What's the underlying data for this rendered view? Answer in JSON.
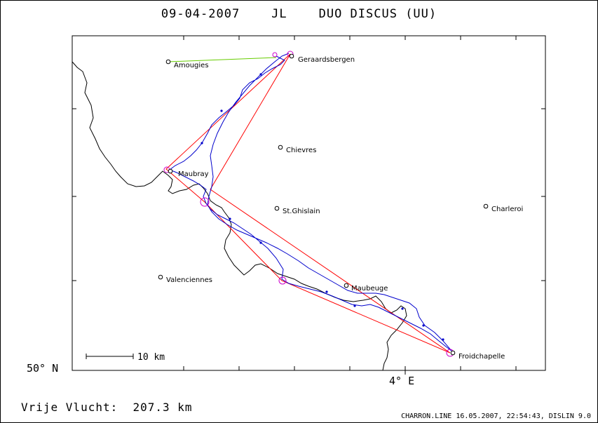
{
  "header": {
    "date": "09-04-2007",
    "pilot": "JL",
    "glider": "DUO DISCUS (UU)"
  },
  "map": {
    "lat_label": "50° N",
    "lon_label": "4° E",
    "scale_bar_label": "10 km",
    "places": [
      {
        "name": "Amougies"
      },
      {
        "name": "Geraardsbergen"
      },
      {
        "name": "Chievres"
      },
      {
        "name": "Maubray"
      },
      {
        "name": "St.Ghislain"
      },
      {
        "name": "Charleroi"
      },
      {
        "name": "Valenciennes"
      },
      {
        "name": "Maubeuge"
      },
      {
        "name": "Froidchapelle"
      }
    ],
    "colors": {
      "task_line": "#ff0000",
      "track": "#0000cc",
      "start_leg": "#66cc00",
      "turnpoint_marker": "#cc00cc",
      "border": "#000000"
    }
  },
  "footer": {
    "distance_label": "Vrije Vlucht:",
    "distance_value": "207.3 km",
    "source": "CHARRON.LINE 16.05.2007, 22:54:43, DISLIN 9.0"
  }
}
